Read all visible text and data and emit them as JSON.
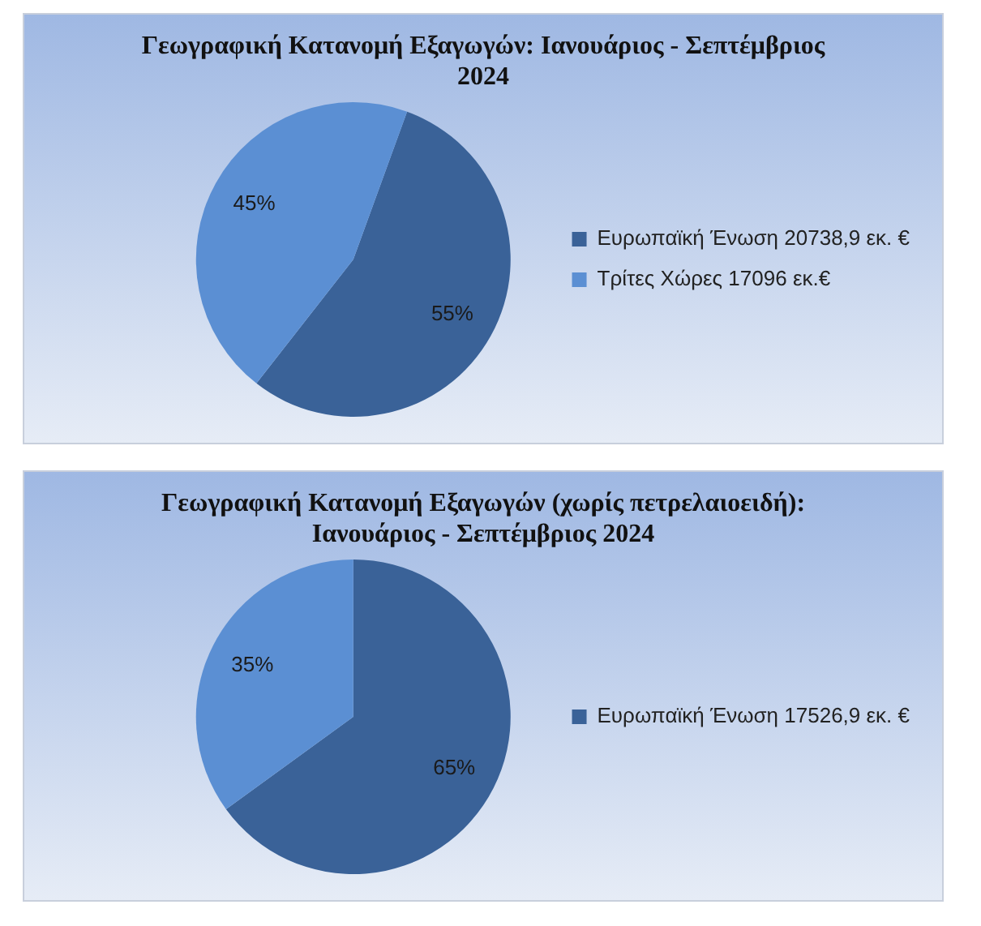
{
  "chart_data": [
    {
      "type": "pie",
      "title": "Γεωγραφική Κατανομή Εξαγωγών: Ιανουάριος - Σεπτέμβριος 2024",
      "categories": [
        "Ευρωπαϊκή Ένωση 20738,9 εκ. €",
        "Τρίτες Χώρες 17096 εκ.€"
      ],
      "values": [
        55,
        45
      ],
      "value_labels": [
        "55%",
        "45%"
      ],
      "colors": [
        "#3a6298",
        "#5b8fd3"
      ],
      "legend": "right"
    },
    {
      "type": "pie",
      "title": "Γεωγραφική Κατανομή Εξαγωγών (χωρίς πετρελαιοειδή): Ιανουάριος - Σεπτέμβριος 2024",
      "categories": [
        "Ευρωπαϊκή Ένωση 17526,9 εκ. €",
        null
      ],
      "values": [
        65,
        35
      ],
      "value_labels": [
        "65%",
        "35%"
      ],
      "colors": [
        "#3a6298",
        "#5b8fd3"
      ],
      "legend": "right"
    }
  ]
}
